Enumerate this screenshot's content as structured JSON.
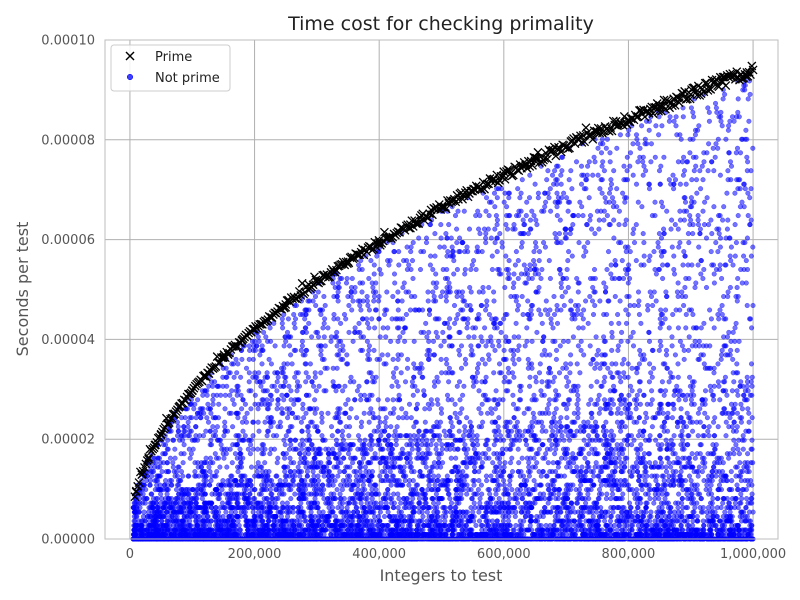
{
  "chart_data": {
    "type": "scatter",
    "title": "Time cost for checking primality",
    "xlabel": "Integers to test",
    "ylabel": "Seconds per test",
    "xlim": [
      -40000,
      1040000
    ],
    "ylim": [
      0,
      0.0001
    ],
    "xticks": [
      0,
      200000,
      400000,
      600000,
      800000,
      1000000
    ],
    "xtick_labels": [
      "0",
      "200,000",
      "400,000",
      "600,000",
      "800,000",
      "1,000,000"
    ],
    "yticks": [
      0,
      2e-05,
      4e-05,
      6e-05,
      8e-05,
      0.0001
    ],
    "ytick_labels": [
      "0.00000",
      "0.00002",
      "0.00004",
      "0.00006",
      "0.00008",
      "0.00010"
    ],
    "grid": true,
    "legend_position": "top-left",
    "series": [
      {
        "name": "Prime",
        "marker": "x",
        "color": "#000000",
        "x": [
          10000,
          20000,
          30000,
          40000,
          50000,
          60000,
          70000,
          80000,
          100000,
          120000,
          150000,
          180000,
          200000,
          250000,
          300000,
          350000,
          400000,
          450000,
          500000,
          550000,
          600000,
          650000,
          700000,
          750000,
          800000,
          850000,
          900000,
          950000,
          990000,
          1000000
        ],
        "y": [
          9.4e-06,
          1.3e-05,
          1.6e-05,
          1.88e-05,
          2.1e-05,
          2.3e-05,
          2.49e-05,
          2.66e-05,
          2.97e-05,
          3.26e-05,
          3.64e-05,
          3.99e-05,
          4.2e-05,
          4.7e-05,
          5.15e-05,
          5.56e-05,
          5.94e-05,
          6.3e-05,
          6.65e-05,
          6.97e-05,
          7.28e-05,
          7.58e-05,
          7.86e-05,
          8.14e-05,
          8.4e-05,
          8.66e-05,
          8.91e-05,
          9.16e-05,
          9.35e-05,
          9.4e-05
        ]
      },
      {
        "name": "Not prime",
        "marker": "o",
        "color": "#0000ff",
        "x_range": [
          5000,
          1000000
        ],
        "y_range": [
          0,
          9.4e-05
        ],
        "upper_bound_note": "",
        "approx_point_count": 9000
      }
    ]
  }
}
